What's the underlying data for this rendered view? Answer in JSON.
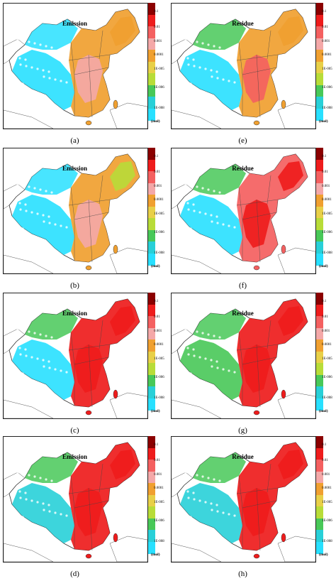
{
  "legend": {
    "labels": [
      "0.1",
      "0.01",
      "0.001",
      "0.0001",
      "1E-005",
      "1E-006",
      "1E-008"
    ],
    "unit": "(mol)",
    "colors": [
      "#8b0000",
      "#ee1c1c",
      "#f46060",
      "#f4a8a8",
      "#f0a030",
      "#e8d048",
      "#b8dc38",
      "#48c858",
      "#28d0d8",
      "#28e0ff"
    ]
  },
  "panels": [
    {
      "id": "a",
      "title": "Emission",
      "caption": "(a)"
    },
    {
      "id": "e",
      "title": "Residue",
      "caption": "(e)"
    },
    {
      "id": "b",
      "title": "Emission",
      "caption": "(b)"
    },
    {
      "id": "f",
      "title": "Residue",
      "caption": "(f)"
    },
    {
      "id": "c",
      "title": "Emission",
      "caption": "(c)"
    },
    {
      "id": "g",
      "title": "Residue",
      "caption": "(g)"
    },
    {
      "id": "d",
      "title": "Emission",
      "caption": "(d)"
    },
    {
      "id": "h",
      "title": "Residue",
      "caption": "(h)"
    }
  ]
}
